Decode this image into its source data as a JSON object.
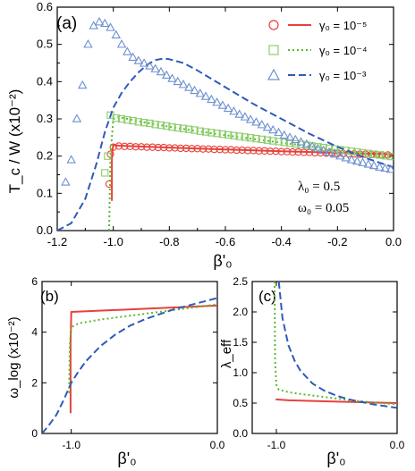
{
  "chart_data": [
    {
      "type": "line",
      "panel_label": "(a)",
      "xlabel": "β'₀",
      "ylabel": "T_c / W (x10⁻²)",
      "xlim": [
        -1.2,
        0.0
      ],
      "ylim": [
        0.0,
        0.6
      ],
      "x_ticks": [
        "-1.2",
        "-1.0",
        "-0.8",
        "-0.6",
        "-0.4",
        "-0.2",
        "0.0"
      ],
      "y_ticks": [
        "0.0",
        "0.1",
        "0.2",
        "0.3",
        "0.4",
        "0.5",
        "0.6"
      ],
      "annotations": [
        "λ₀ = 0.5",
        "ω₀ = 0.05"
      ],
      "legend_position": "top-right",
      "series": [
        {
          "name": "γ₀ = 10⁻⁵",
          "kind": "line",
          "style": "solid",
          "color": "#e8413b",
          "x": [
            -1.005,
            -1.005,
            -1.0,
            -0.98,
            -0.8,
            -0.6,
            -0.4,
            -0.2,
            0.0
          ],
          "y": [
            0.08,
            0.205,
            0.23,
            0.228,
            0.223,
            0.218,
            0.213,
            0.209,
            0.205
          ]
        },
        {
          "name": "γ₀ = 10⁻⁵ (symbols)",
          "kind": "markers",
          "marker": "circle",
          "color": "#e8413b",
          "x": [
            -1.015,
            -1.01,
            -1.0,
            -0.98,
            -0.96,
            -0.94,
            -0.92,
            -0.9,
            -0.88,
            -0.86,
            -0.84,
            -0.82,
            -0.8,
            -0.78,
            -0.76,
            -0.74,
            -0.72,
            -0.7,
            -0.68,
            -0.66,
            -0.64,
            -0.62,
            -0.6,
            -0.58,
            -0.56,
            -0.54,
            -0.52,
            -0.5,
            -0.48,
            -0.46,
            -0.44,
            -0.42,
            -0.4,
            -0.38,
            -0.36,
            -0.34,
            -0.32,
            -0.3,
            -0.28,
            -0.26,
            -0.24,
            -0.22,
            -0.2,
            -0.18,
            -0.16,
            -0.14,
            -0.12,
            -0.1,
            -0.08,
            -0.06,
            -0.04,
            -0.02
          ],
          "y": [
            0.125,
            0.205,
            0.224,
            0.227,
            0.226,
            0.226,
            0.225,
            0.225,
            0.224,
            0.224,
            0.223,
            0.223,
            0.222,
            0.222,
            0.221,
            0.221,
            0.22,
            0.22,
            0.219,
            0.219,
            0.218,
            0.218,
            0.217,
            0.217,
            0.216,
            0.216,
            0.215,
            0.215,
            0.214,
            0.214,
            0.213,
            0.213,
            0.212,
            0.212,
            0.211,
            0.211,
            0.21,
            0.21,
            0.209,
            0.209,
            0.208,
            0.208,
            0.207,
            0.207,
            0.206,
            0.206,
            0.205,
            0.205,
            0.204,
            0.204,
            0.203,
            0.203
          ]
        },
        {
          "name": "γ₀ = 10⁻⁴",
          "kind": "line",
          "style": "dotted",
          "color": "#5cb82e",
          "x": [
            -1.015,
            -1.01,
            -1.0,
            -0.98,
            -0.9,
            -0.8,
            -0.7,
            -0.6,
            -0.5,
            -0.4,
            -0.3,
            -0.2,
            -0.1,
            0.0
          ],
          "y": [
            0.0,
            0.2,
            0.3,
            0.305,
            0.292,
            0.279,
            0.267,
            0.256,
            0.246,
            0.236,
            0.226,
            0.216,
            0.205,
            0.194
          ]
        },
        {
          "name": "γ₀ = 10⁻⁴ (symbols)",
          "kind": "markers",
          "marker": "square",
          "color": "#8ccd6b",
          "x": [
            -1.03,
            -1.02,
            -1.01,
            -0.99,
            -0.97,
            -0.95,
            -0.93,
            -0.91,
            -0.89,
            -0.87,
            -0.85,
            -0.83,
            -0.81,
            -0.79,
            -0.77,
            -0.75,
            -0.73,
            -0.71,
            -0.69,
            -0.67,
            -0.65,
            -0.63,
            -0.61,
            -0.59,
            -0.57,
            -0.55,
            -0.53,
            -0.51,
            -0.49,
            -0.47,
            -0.45,
            -0.43,
            -0.41,
            -0.39,
            -0.37,
            -0.35,
            -0.33,
            -0.31,
            -0.29,
            -0.27,
            -0.25,
            -0.23,
            -0.21,
            -0.19,
            -0.17,
            -0.15,
            -0.13,
            -0.11,
            -0.09,
            -0.07,
            -0.05,
            -0.03,
            -0.01
          ],
          "y": [
            0.155,
            0.2,
            0.31,
            0.302,
            0.3,
            0.297,
            0.295,
            0.292,
            0.29,
            0.288,
            0.285,
            0.283,
            0.281,
            0.278,
            0.276,
            0.274,
            0.272,
            0.27,
            0.267,
            0.265,
            0.263,
            0.261,
            0.259,
            0.257,
            0.255,
            0.253,
            0.251,
            0.249,
            0.247,
            0.245,
            0.243,
            0.241,
            0.239,
            0.237,
            0.235,
            0.233,
            0.231,
            0.229,
            0.227,
            0.225,
            0.223,
            0.221,
            0.219,
            0.217,
            0.215,
            0.213,
            0.211,
            0.209,
            0.207,
            0.205,
            0.203,
            0.201,
            0.199
          ]
        },
        {
          "name": "γ₀ = 10⁻³",
          "kind": "line",
          "style": "dashed",
          "color": "#2f5bb8",
          "x": [
            -1.2,
            -1.15,
            -1.1,
            -1.06,
            -1.03,
            -1.0,
            -0.97,
            -0.94,
            -0.91,
            -0.88,
            -0.85,
            -0.82,
            -0.8,
            -0.75,
            -0.7,
            -0.6,
            -0.5,
            -0.4,
            -0.3,
            -0.2,
            -0.1,
            0.0
          ],
          "y": [
            0.0,
            0.02,
            0.085,
            0.18,
            0.265,
            0.33,
            0.37,
            0.4,
            0.425,
            0.445,
            0.458,
            0.462,
            0.46,
            0.45,
            0.43,
            0.385,
            0.34,
            0.3,
            0.26,
            0.225,
            0.195,
            0.17
          ]
        },
        {
          "name": "γ₀ = 10⁻³ (symbols)",
          "kind": "markers",
          "marker": "triangle",
          "color": "#6d8fcf",
          "x": [
            -1.17,
            -1.15,
            -1.13,
            -1.11,
            -1.09,
            -1.07,
            -1.05,
            -1.03,
            -1.01,
            -0.99,
            -0.97,
            -0.95,
            -0.93,
            -0.91,
            -0.89,
            -0.87,
            -0.85,
            -0.83,
            -0.81,
            -0.79,
            -0.77,
            -0.75,
            -0.73,
            -0.71,
            -0.69,
            -0.67,
            -0.65,
            -0.63,
            -0.61,
            -0.59,
            -0.57,
            -0.55,
            -0.53,
            -0.51,
            -0.49,
            -0.47,
            -0.45,
            -0.43,
            -0.41,
            -0.39,
            -0.37,
            -0.35,
            -0.33,
            -0.31,
            -0.29,
            -0.27,
            -0.25,
            -0.23,
            -0.21,
            -0.19,
            -0.17,
            -0.15,
            -0.13,
            -0.11,
            -0.09,
            -0.07,
            -0.05,
            -0.03,
            -0.01
          ],
          "y": [
            0.13,
            0.19,
            0.3,
            0.39,
            0.5,
            0.55,
            0.56,
            0.556,
            0.545,
            0.525,
            0.5,
            0.48,
            0.465,
            0.456,
            0.449,
            0.442,
            0.434,
            0.426,
            0.417,
            0.408,
            0.4,
            0.392,
            0.384,
            0.376,
            0.368,
            0.36,
            0.352,
            0.344,
            0.336,
            0.328,
            0.32,
            0.312,
            0.305,
            0.298,
            0.291,
            0.284,
            0.277,
            0.27,
            0.263,
            0.256,
            0.25,
            0.244,
            0.238,
            0.232,
            0.226,
            0.22,
            0.215,
            0.21,
            0.205,
            0.2,
            0.195,
            0.19,
            0.186,
            0.182,
            0.178,
            0.174,
            0.17,
            0.167,
            0.164
          ]
        }
      ]
    },
    {
      "type": "line",
      "panel_label": "(b)",
      "xlabel": "β'₀",
      "ylabel": "ω_log (x10⁻²)",
      "xlim": [
        -1.2,
        0.0
      ],
      "ylim": [
        0,
        6
      ],
      "x_ticks": [
        "-1.0",
        "0.0"
      ],
      "x_tick_values": [
        -1.0,
        0.0
      ],
      "y_ticks": [
        "0",
        "2",
        "4",
        "6"
      ],
      "series": [
        {
          "name": "γ₀ = 10⁻⁵",
          "style": "solid",
          "color": "#e8413b",
          "x": [
            -1.005,
            -1.005,
            -1.0,
            0.0
          ],
          "y": [
            0.8,
            3.5,
            4.8,
            5.05
          ]
        },
        {
          "name": "γ₀ = 10⁻⁴",
          "style": "dotted",
          "color": "#5cb82e",
          "x": [
            -1.015,
            -1.01,
            -1.0,
            -0.95,
            -0.8,
            -0.6,
            -0.4,
            -0.2,
            0.0
          ],
          "y": [
            1.6,
            3.5,
            4.2,
            4.35,
            4.5,
            4.65,
            4.8,
            4.95,
            5.1
          ]
        },
        {
          "name": "γ₀ = 10⁻³",
          "style": "dashed",
          "color": "#2f5bb8",
          "x": [
            -1.2,
            -1.15,
            -1.1,
            -1.05,
            -1.0,
            -0.95,
            -0.9,
            -0.8,
            -0.7,
            -0.6,
            -0.5,
            -0.4,
            -0.3,
            -0.2,
            -0.1,
            0.0
          ],
          "y": [
            0.0,
            0.35,
            0.75,
            1.35,
            2.0,
            2.45,
            2.85,
            3.45,
            3.9,
            4.25,
            4.5,
            4.7,
            4.9,
            5.05,
            5.2,
            5.35
          ]
        }
      ]
    },
    {
      "type": "line",
      "panel_label": "(c)",
      "xlabel": "β'₀",
      "ylabel": "λ_eff",
      "xlim": [
        -1.2,
        0.0
      ],
      "ylim": [
        0.0,
        2.5
      ],
      "x_ticks": [
        "-1.0",
        "0.0"
      ],
      "x_tick_values": [
        -1.0,
        0.0
      ],
      "y_ticks": [
        "0.0",
        "0.5",
        "1.0",
        "1.5",
        "2.0",
        "2.5"
      ],
      "series": [
        {
          "name": "γ₀ = 10⁻⁵",
          "style": "solid",
          "color": "#e8413b",
          "x": [
            -1.005,
            -0.9,
            -0.6,
            -0.3,
            0.0
          ],
          "y": [
            0.56,
            0.545,
            0.53,
            0.515,
            0.5
          ]
        },
        {
          "name": "γ₀ = 10⁻⁴",
          "style": "dotted",
          "color": "#5cb82e",
          "x": [
            -1.015,
            -1.01,
            -1.0,
            -0.98,
            -0.9,
            -0.8,
            -0.6,
            -0.4,
            -0.2,
            0.0
          ],
          "y": [
            2.5,
            1.2,
            0.8,
            0.72,
            0.68,
            0.65,
            0.6,
            0.55,
            0.51,
            0.48
          ]
        },
        {
          "name": "γ₀ = 10⁻³",
          "style": "dashed",
          "color": "#2f5bb8",
          "x": [
            -0.98,
            -0.95,
            -0.9,
            -0.85,
            -0.8,
            -0.7,
            -0.6,
            -0.5,
            -0.4,
            -0.3,
            -0.2,
            -0.1,
            0.0
          ],
          "y": [
            2.5,
            1.9,
            1.45,
            1.2,
            1.03,
            0.82,
            0.7,
            0.62,
            0.56,
            0.52,
            0.48,
            0.45,
            0.42
          ]
        }
      ]
    }
  ]
}
